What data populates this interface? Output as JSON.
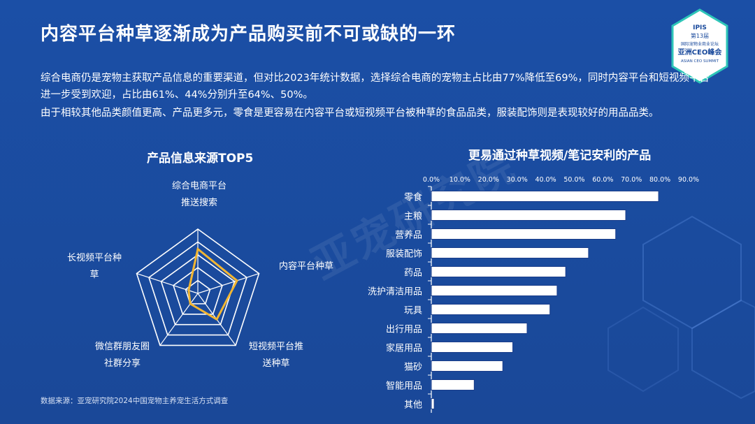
{
  "title": "内容平台种草逐渐成为产品购买前不可或缺的一环",
  "badge": {
    "line1": "IPIS",
    "line2": "第13届",
    "line3": "国际宠物业商业论坛",
    "line4": "亚洲CEO峰会",
    "line5": "ASIAN CEO SUMMIT",
    "accent": "#2ec6b8"
  },
  "paragraphs": [
    "综合电商仍是宠物主获取产品信息的重要渠道，但对比2023年统计数据，选择综合电商的宠物主占比由77%降低至69%，同时内容平台和短视频平台进一步受到欢迎，占比由61%、44%分别升至64%、50%。",
    "由于相较其他品类颜值更高、产品更多元，零食是更容易在内容平台或短视频平台被种草的食品品类，服装配饰则是表现较好的用品品类。"
  ],
  "watermark": "亚宠研究院",
  "source": "数据来源：亚宠研究院2024中国宠物主养宠生活方式调查",
  "chart_data": [
    {
      "type": "radar",
      "title": "产品信息来源TOP5",
      "axes": [
        "综合电商平台推送搜索",
        "内容平台种草",
        "短视频平台推送种草",
        "微信群朋友圈社群分享",
        "长视频平台种草"
      ],
      "axis_labels": [
        [
          "综合电商平台",
          "推送搜索"
        ],
        [
          "内容平台种草"
        ],
        [
          "短视频平台推",
          "送种草"
        ],
        [
          "微信群朋友圈",
          "社群分享"
        ],
        [
          "长视频平台种",
          "草"
        ]
      ],
      "values": [
        69,
        64,
        50,
        20,
        15
      ],
      "max": 100,
      "rings": 5,
      "line_color": "#f2b632"
    },
    {
      "type": "bar",
      "orientation": "horizontal",
      "title": "更易通过种草视频/笔记安利的产品",
      "categories": [
        "零食",
        "主粮",
        "营养品",
        "服装配饰",
        "药品",
        "洗护清洁用品",
        "玩具",
        "出行用品",
        "家居用品",
        "猫砂",
        "智能用品",
        "其他"
      ],
      "values": [
        79.5,
        68,
        64.5,
        55,
        47,
        44,
        41.5,
        33.5,
        28.5,
        25,
        15,
        1
      ],
      "xlim": [
        0,
        90
      ],
      "xticks": [
        "0.0%",
        "10.0%",
        "20.0%",
        "30.0%",
        "40.0%",
        "50.0%",
        "60.0%",
        "70.0%",
        "80.0%",
        "90.0%"
      ],
      "bar_fill": "#ffffff",
      "bar_stroke": "#1a3d8a"
    }
  ]
}
